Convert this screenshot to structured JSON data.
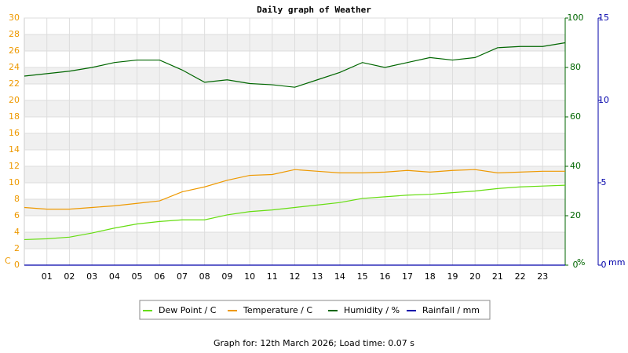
{
  "chart_data": {
    "type": "line",
    "title": "Daily graph of Weather",
    "footer": "Graph for: 12th March 2026; Load time: 0.07 s",
    "ylabel": "C",
    "y2label": "%",
    "y3label": "mm",
    "x": [
      0,
      1,
      2,
      3,
      4,
      5,
      6,
      7,
      8,
      9,
      10,
      11,
      12,
      13,
      14,
      15,
      16,
      17,
      18,
      19,
      20,
      21,
      22,
      23,
      24
    ],
    "xlim": [
      0,
      24
    ],
    "xticks": [
      {
        "value": 1,
        "label": "01"
      },
      {
        "value": 2,
        "label": "02"
      },
      {
        "value": 3,
        "label": "03"
      },
      {
        "value": 4,
        "label": "04"
      },
      {
        "value": 5,
        "label": "05"
      },
      {
        "value": 6,
        "label": "06"
      },
      {
        "value": 7,
        "label": "07"
      },
      {
        "value": 8,
        "label": "08"
      },
      {
        "value": 9,
        "label": "09"
      },
      10,
      11,
      12,
      13,
      14,
      15,
      16,
      17,
      18,
      19,
      20,
      21,
      22,
      23
    ],
    "ylim": [
      0,
      30
    ],
    "yticks": [
      0,
      2,
      4,
      6,
      8,
      10,
      12,
      14,
      16,
      18,
      20,
      22,
      24,
      26,
      28,
      30
    ],
    "y2lim": [
      0,
      100
    ],
    "y2ticks": [
      0,
      20,
      40,
      60,
      80,
      100
    ],
    "y3lim": [
      0,
      15
    ],
    "y3ticks": [
      0,
      5,
      10,
      15
    ],
    "grid": true,
    "series": [
      {
        "name": "Dew Point / C",
        "color": "#66dd11",
        "axis": "y",
        "values": [
          3.1,
          3.2,
          3.4,
          3.9,
          4.5,
          5.0,
          5.3,
          5.5,
          5.5,
          6.1,
          6.5,
          6.7,
          7.0,
          7.3,
          7.6,
          8.1,
          8.3,
          8.5,
          8.6,
          8.8,
          9.0,
          9.3,
          9.5,
          9.6,
          9.7
        ]
      },
      {
        "name": "Temperature / C",
        "color": "#ee9900",
        "axis": "y",
        "values": [
          7.0,
          6.8,
          6.8,
          7.0,
          7.2,
          7.5,
          7.8,
          8.9,
          9.5,
          10.3,
          10.9,
          11.0,
          11.6,
          11.4,
          11.2,
          11.2,
          11.3,
          11.5,
          11.3,
          11.5,
          11.6,
          11.2,
          11.3,
          11.4,
          11.4
        ]
      },
      {
        "name": "Humidity / %",
        "color": "#006600",
        "axis": "y2",
        "values": [
          76.5,
          77.5,
          78.5,
          80,
          82,
          83,
          83,
          79,
          74,
          75,
          73.5,
          73,
          72,
          75,
          78,
          82,
          80,
          82,
          84,
          83,
          84,
          88,
          88.5,
          88.5,
          90
        ]
      },
      {
        "name": "Rainfall / mm",
        "color": "#0000aa",
        "axis": "y3",
        "values": [
          0,
          0,
          0,
          0,
          0,
          0,
          0,
          0,
          0,
          0,
          0,
          0,
          0,
          0,
          0,
          0,
          0,
          0,
          0,
          0,
          0,
          0,
          0,
          0,
          0
        ]
      }
    ]
  }
}
